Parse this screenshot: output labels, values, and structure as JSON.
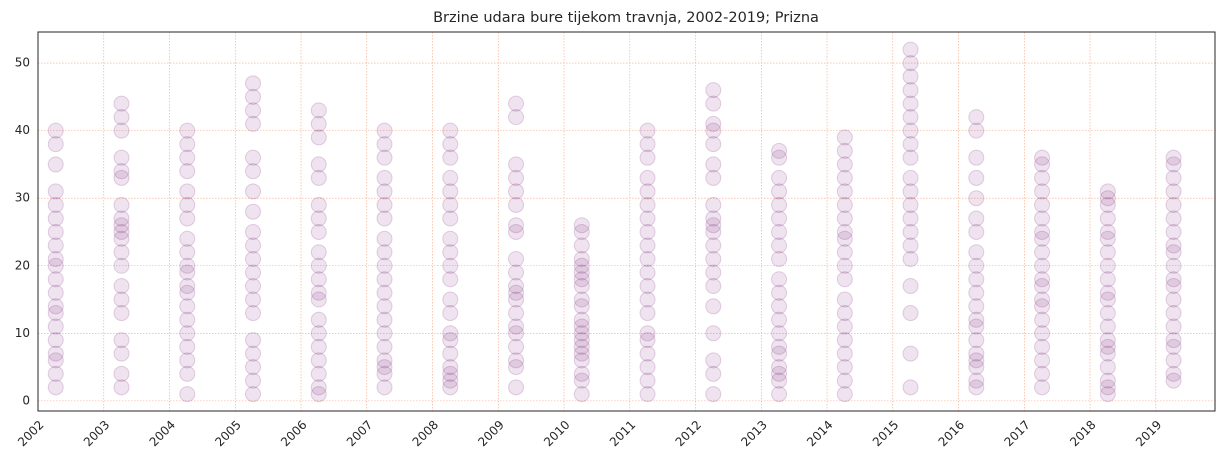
{
  "chart_data": {
    "type": "scatter",
    "title": "Brzine udara bure tijekom travnja, 2002-2019; Prizna",
    "color": "#7b2a7b",
    "grid": true,
    "grid_color": "#f4a582",
    "xlim": [
      2002,
      2019.9
    ],
    "ylim": [
      -1.5,
      54.6
    ],
    "xticks": [
      2002,
      2003,
      2004,
      2005,
      2006,
      2007,
      2008,
      2009,
      2010,
      2011,
      2012,
      2013,
      2014,
      2015,
      2016,
      2017,
      2018,
      2019
    ],
    "yticks": [
      0,
      10,
      20,
      30,
      40,
      50
    ],
    "x": [
      2002.27,
      2002.27,
      2002.27,
      2002.27,
      2002.27,
      2002.27,
      2002.27,
      2002.27,
      2002.27,
      2002.27,
      2002.27,
      2002.27,
      2002.27,
      2002.27,
      2002.27,
      2002.27,
      2002.27,
      2002.27,
      2002.27,
      2002.27,
      2003.27,
      2003.27,
      2003.27,
      2003.27,
      2003.27,
      2003.27,
      2003.27,
      2003.27,
      2003.27,
      2003.27,
      2003.27,
      2003.27,
      2003.27,
      2003.27,
      2003.27,
      2003.27,
      2003.27,
      2003.27,
      2003.27,
      2003.27,
      2004.27,
      2004.27,
      2004.27,
      2004.27,
      2004.27,
      2004.27,
      2004.27,
      2004.27,
      2004.27,
      2004.27,
      2004.27,
      2004.27,
      2004.27,
      2004.27,
      2004.27,
      2004.27,
      2004.27,
      2004.27,
      2004.27,
      2004.27,
      2005.27,
      2005.27,
      2005.27,
      2005.27,
      2005.27,
      2005.27,
      2005.27,
      2005.27,
      2005.27,
      2005.27,
      2005.27,
      2005.27,
      2005.27,
      2005.27,
      2005.27,
      2005.27,
      2005.27,
      2005.27,
      2005.27,
      2005.27,
      2006.27,
      2006.27,
      2006.27,
      2006.27,
      2006.27,
      2006.27,
      2006.27,
      2006.27,
      2006.27,
      2006.27,
      2006.27,
      2006.27,
      2006.27,
      2006.27,
      2006.27,
      2006.27,
      2006.27,
      2006.27,
      2006.27,
      2006.27,
      2007.27,
      2007.27,
      2007.27,
      2007.27,
      2007.27,
      2007.27,
      2007.27,
      2007.27,
      2007.27,
      2007.27,
      2007.27,
      2007.27,
      2007.27,
      2007.27,
      2007.27,
      2007.27,
      2007.27,
      2007.27,
      2007.27,
      2007.27,
      2008.27,
      2008.27,
      2008.27,
      2008.27,
      2008.27,
      2008.27,
      2008.27,
      2008.27,
      2008.27,
      2008.27,
      2008.27,
      2008.27,
      2008.27,
      2008.27,
      2008.27,
      2008.27,
      2008.27,
      2008.27,
      2008.27,
      2008.27,
      2009.27,
      2009.27,
      2009.27,
      2009.27,
      2009.27,
      2009.27,
      2009.27,
      2009.27,
      2009.27,
      2009.27,
      2009.27,
      2009.27,
      2009.27,
      2009.27,
      2009.27,
      2009.27,
      2009.27,
      2009.27,
      2009.27,
      2009.27,
      2010.27,
      2010.27,
      2010.27,
      2010.27,
      2010.27,
      2010.27,
      2010.27,
      2010.27,
      2010.27,
      2010.27,
      2010.27,
      2010.27,
      2010.27,
      2010.27,
      2010.27,
      2010.27,
      2010.27,
      2010.27,
      2010.27,
      2010.27,
      2011.27,
      2011.27,
      2011.27,
      2011.27,
      2011.27,
      2011.27,
      2011.27,
      2011.27,
      2011.27,
      2011.27,
      2011.27,
      2011.27,
      2011.27,
      2011.27,
      2011.27,
      2011.27,
      2011.27,
      2011.27,
      2011.27,
      2011.27,
      2012.27,
      2012.27,
      2012.27,
      2012.27,
      2012.27,
      2012.27,
      2012.27,
      2012.27,
      2012.27,
      2012.27,
      2012.27,
      2012.27,
      2012.27,
      2012.27,
      2012.27,
      2012.27,
      2012.27,
      2012.27,
      2012.27,
      2012.27,
      2013.27,
      2013.27,
      2013.27,
      2013.27,
      2013.27,
      2013.27,
      2013.27,
      2013.27,
      2013.27,
      2013.27,
      2013.27,
      2013.27,
      2013.27,
      2013.27,
      2013.27,
      2013.27,
      2013.27,
      2013.27,
      2013.27,
      2013.27,
      2014.27,
      2014.27,
      2014.27,
      2014.27,
      2014.27,
      2014.27,
      2014.27,
      2014.27,
      2014.27,
      2014.27,
      2014.27,
      2014.27,
      2014.27,
      2014.27,
      2014.27,
      2014.27,
      2014.27,
      2014.27,
      2014.27,
      2014.27,
      2015.27,
      2015.27,
      2015.27,
      2015.27,
      2015.27,
      2015.27,
      2015.27,
      2015.27,
      2015.27,
      2015.27,
      2015.27,
      2015.27,
      2015.27,
      2015.27,
      2015.27,
      2015.27,
      2015.27,
      2015.27,
      2015.27,
      2015.27,
      2016.27,
      2016.27,
      2016.27,
      2016.27,
      2016.27,
      2016.27,
      2016.27,
      2016.27,
      2016.27,
      2016.27,
      2016.27,
      2016.27,
      2016.27,
      2016.27,
      2016.27,
      2016.27,
      2016.27,
      2016.27,
      2016.27,
      2016.27,
      2017.27,
      2017.27,
      2017.27,
      2017.27,
      2017.27,
      2017.27,
      2017.27,
      2017.27,
      2017.27,
      2017.27,
      2017.27,
      2017.27,
      2017.27,
      2017.27,
      2017.27,
      2017.27,
      2017.27,
      2017.27,
      2017.27,
      2017.27,
      2018.27,
      2018.27,
      2018.27,
      2018.27,
      2018.27,
      2018.27,
      2018.27,
      2018.27,
      2018.27,
      2018.27,
      2018.27,
      2018.27,
      2018.27,
      2018.27,
      2018.27,
      2018.27,
      2018.27,
      2018.27,
      2018.27,
      2018.27,
      2019.27,
      2019.27,
      2019.27,
      2019.27,
      2019.27,
      2019.27,
      2019.27,
      2019.27,
      2019.27,
      2019.27,
      2019.27,
      2019.27,
      2019.27,
      2019.27,
      2019.27,
      2019.27,
      2019.27,
      2019.27,
      2019.27,
      2019.27
    ],
    "values": [
      40,
      38,
      35,
      31,
      29,
      27,
      25,
      23,
      21,
      20,
      18,
      16,
      14,
      13,
      11,
      9,
      7,
      6,
      4,
      2,
      44,
      42,
      40,
      36,
      34,
      33,
      29,
      27,
      26,
      25,
      24,
      22,
      20,
      17,
      15,
      13,
      9,
      7,
      4,
      2,
      40,
      38,
      36,
      34,
      31,
      29,
      27,
      24,
      22,
      20,
      19,
      17,
      16,
      14,
      12,
      10,
      8,
      6,
      4,
      1,
      47,
      45,
      43,
      41,
      36,
      34,
      31,
      28,
      25,
      23,
      21,
      19,
      17,
      15,
      13,
      9,
      7,
      5,
      3,
      1,
      43,
      41,
      39,
      35,
      33,
      29,
      27,
      25,
      22,
      20,
      18,
      16,
      15,
      12,
      10,
      8,
      6,
      4,
      2,
      1,
      40,
      38,
      36,
      33,
      31,
      29,
      27,
      24,
      22,
      20,
      18,
      16,
      14,
      12,
      10,
      8,
      6,
      5,
      4,
      2,
      40,
      38,
      36,
      33,
      31,
      29,
      27,
      24,
      22,
      20,
      18,
      15,
      13,
      10,
      9,
      7,
      5,
      4,
      3,
      2,
      44,
      42,
      35,
      33,
      31,
      29,
      26,
      25,
      21,
      19,
      17,
      16,
      15,
      13,
      11,
      10,
      8,
      6,
      5,
      2,
      26,
      25,
      23,
      21,
      20,
      19,
      18,
      17,
      15,
      14,
      12,
      11,
      10,
      9,
      8,
      7,
      6,
      4,
      3,
      1,
      40,
      38,
      36,
      33,
      31,
      29,
      27,
      25,
      23,
      21,
      19,
      17,
      15,
      13,
      10,
      9,
      7,
      5,
      3,
      1,
      46,
      44,
      41,
      40,
      38,
      35,
      33,
      29,
      27,
      26,
      25,
      23,
      21,
      19,
      17,
      14,
      10,
      6,
      4,
      1,
      37,
      36,
      33,
      31,
      29,
      27,
      25,
      23,
      21,
      18,
      16,
      14,
      12,
      10,
      8,
      7,
      5,
      4,
      3,
      1,
      39,
      37,
      35,
      33,
      31,
      29,
      27,
      25,
      24,
      22,
      20,
      18,
      15,
      13,
      11,
      9,
      7,
      5,
      3,
      1,
      52,
      50,
      48,
      46,
      44,
      42,
      40,
      38,
      36,
      33,
      31,
      29,
      27,
      25,
      23,
      21,
      17,
      13,
      7,
      2,
      42,
      40,
      36,
      33,
      30,
      27,
      25,
      22,
      20,
      18,
      16,
      14,
      12,
      11,
      9,
      7,
      6,
      5,
      3,
      2,
      36,
      35,
      33,
      31,
      29,
      27,
      25,
      24,
      22,
      20,
      18,
      17,
      15,
      14,
      12,
      10,
      8,
      6,
      4,
      2,
      31,
      30,
      29,
      27,
      25,
      24,
      22,
      20,
      18,
      16,
      15,
      13,
      11,
      9,
      8,
      7,
      5,
      3,
      2,
      1,
      36,
      35,
      33,
      31,
      29,
      27,
      25,
      23,
      22,
      20,
      18,
      17,
      15,
      13,
      11,
      9,
      8,
      6,
      4,
      3
    ]
  }
}
